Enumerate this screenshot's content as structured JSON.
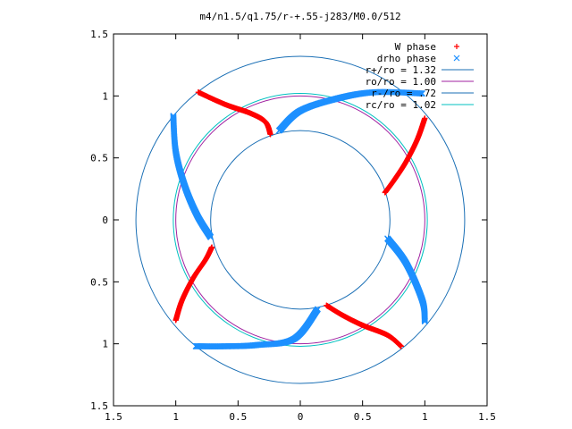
{
  "chart_data": {
    "type": "scatter",
    "title": "m4/n1.5/q1.75/r-+.55-j283/M0.0/512",
    "xlabel": "",
    "ylabel": "",
    "xlim": [
      -1.5,
      1.5
    ],
    "ylim": [
      -1.5,
      1.5
    ],
    "x_ticks": [
      {
        "value": -1.5,
        "label": "1.5"
      },
      {
        "value": -1.0,
        "label": "1"
      },
      {
        "value": -0.5,
        "label": "0.5"
      },
      {
        "value": 0,
        "label": "0"
      },
      {
        "value": 0.5,
        "label": "0.5"
      },
      {
        "value": 1.0,
        "label": "1"
      },
      {
        "value": 1.5,
        "label": "1.5"
      }
    ],
    "y_ticks": [
      {
        "value": 1.5,
        "label": "1.5"
      },
      {
        "value": 1.0,
        "label": "1"
      },
      {
        "value": 0.5,
        "label": "0.5"
      },
      {
        "value": 0,
        "label": "0"
      },
      {
        "value": -0.5,
        "label": "0.5"
      },
      {
        "value": -1.0,
        "label": "1"
      },
      {
        "value": -1.5,
        "label": "1.5"
      }
    ],
    "grid": false,
    "legend_position": "top-right",
    "series": [
      {
        "name": "W phase",
        "kind": "points",
        "marker": "plus",
        "color": "#ff0000",
        "arms": [
          [
            [
              -0.82,
              1.03
            ],
            [
              -0.6,
              0.93
            ],
            [
              -0.4,
              0.86
            ],
            [
              -0.28,
              0.79
            ],
            [
              -0.24,
              0.69
            ]
          ],
          [
            [
              1.0,
              0.82
            ],
            [
              0.94,
              0.65
            ],
            [
              0.85,
              0.47
            ],
            [
              0.76,
              0.33
            ],
            [
              0.68,
              0.22
            ]
          ],
          [
            [
              0.81,
              -1.02
            ],
            [
              0.7,
              -0.93
            ],
            [
              0.5,
              -0.85
            ],
            [
              0.34,
              -0.77
            ],
            [
              0.21,
              -0.69
            ]
          ],
          [
            [
              -1.0,
              -0.81
            ],
            [
              -0.95,
              -0.65
            ],
            [
              -0.86,
              -0.47
            ],
            [
              -0.76,
              -0.32
            ],
            [
              -0.71,
              -0.22
            ]
          ]
        ]
      },
      {
        "name": "drho phase",
        "kind": "points",
        "marker": "cross",
        "color": "#1e90ff",
        "arms": [
          [
            [
              -0.17,
              0.72
            ],
            [
              0.0,
              0.88
            ],
            [
              0.3,
              0.98
            ],
            [
              0.6,
              1.03
            ],
            [
              0.98,
              1.02
            ]
          ],
          [
            [
              0.7,
              -0.15
            ],
            [
              0.85,
              -0.35
            ],
            [
              0.98,
              -0.65
            ],
            [
              1.0,
              -0.82
            ]
          ],
          [
            [
              -0.84,
              -1.02
            ],
            [
              -0.6,
              -1.02
            ],
            [
              -0.35,
              -1.01
            ],
            [
              -0.05,
              -0.96
            ],
            [
              0.14,
              -0.72
            ]
          ],
          [
            [
              -1.02,
              0.84
            ],
            [
              -1.0,
              0.55
            ],
            [
              -0.93,
              0.28
            ],
            [
              -0.83,
              0.04
            ],
            [
              -0.72,
              -0.14
            ]
          ]
        ]
      },
      {
        "name": "r+/ro = 1.32",
        "kind": "circle",
        "radius": 1.32,
        "color": "#1a6fb5"
      },
      {
        "name": "ro/ro = 1.00",
        "kind": "circle",
        "radius": 1.0,
        "color": "#a020a0"
      },
      {
        "name": "r-/ro = .72",
        "kind": "circle",
        "radius": 0.72,
        "color": "#1a6fb5"
      },
      {
        "name": "rc/ro = 1.02",
        "kind": "circle",
        "radius": 1.02,
        "color": "#00c0c0"
      }
    ]
  }
}
